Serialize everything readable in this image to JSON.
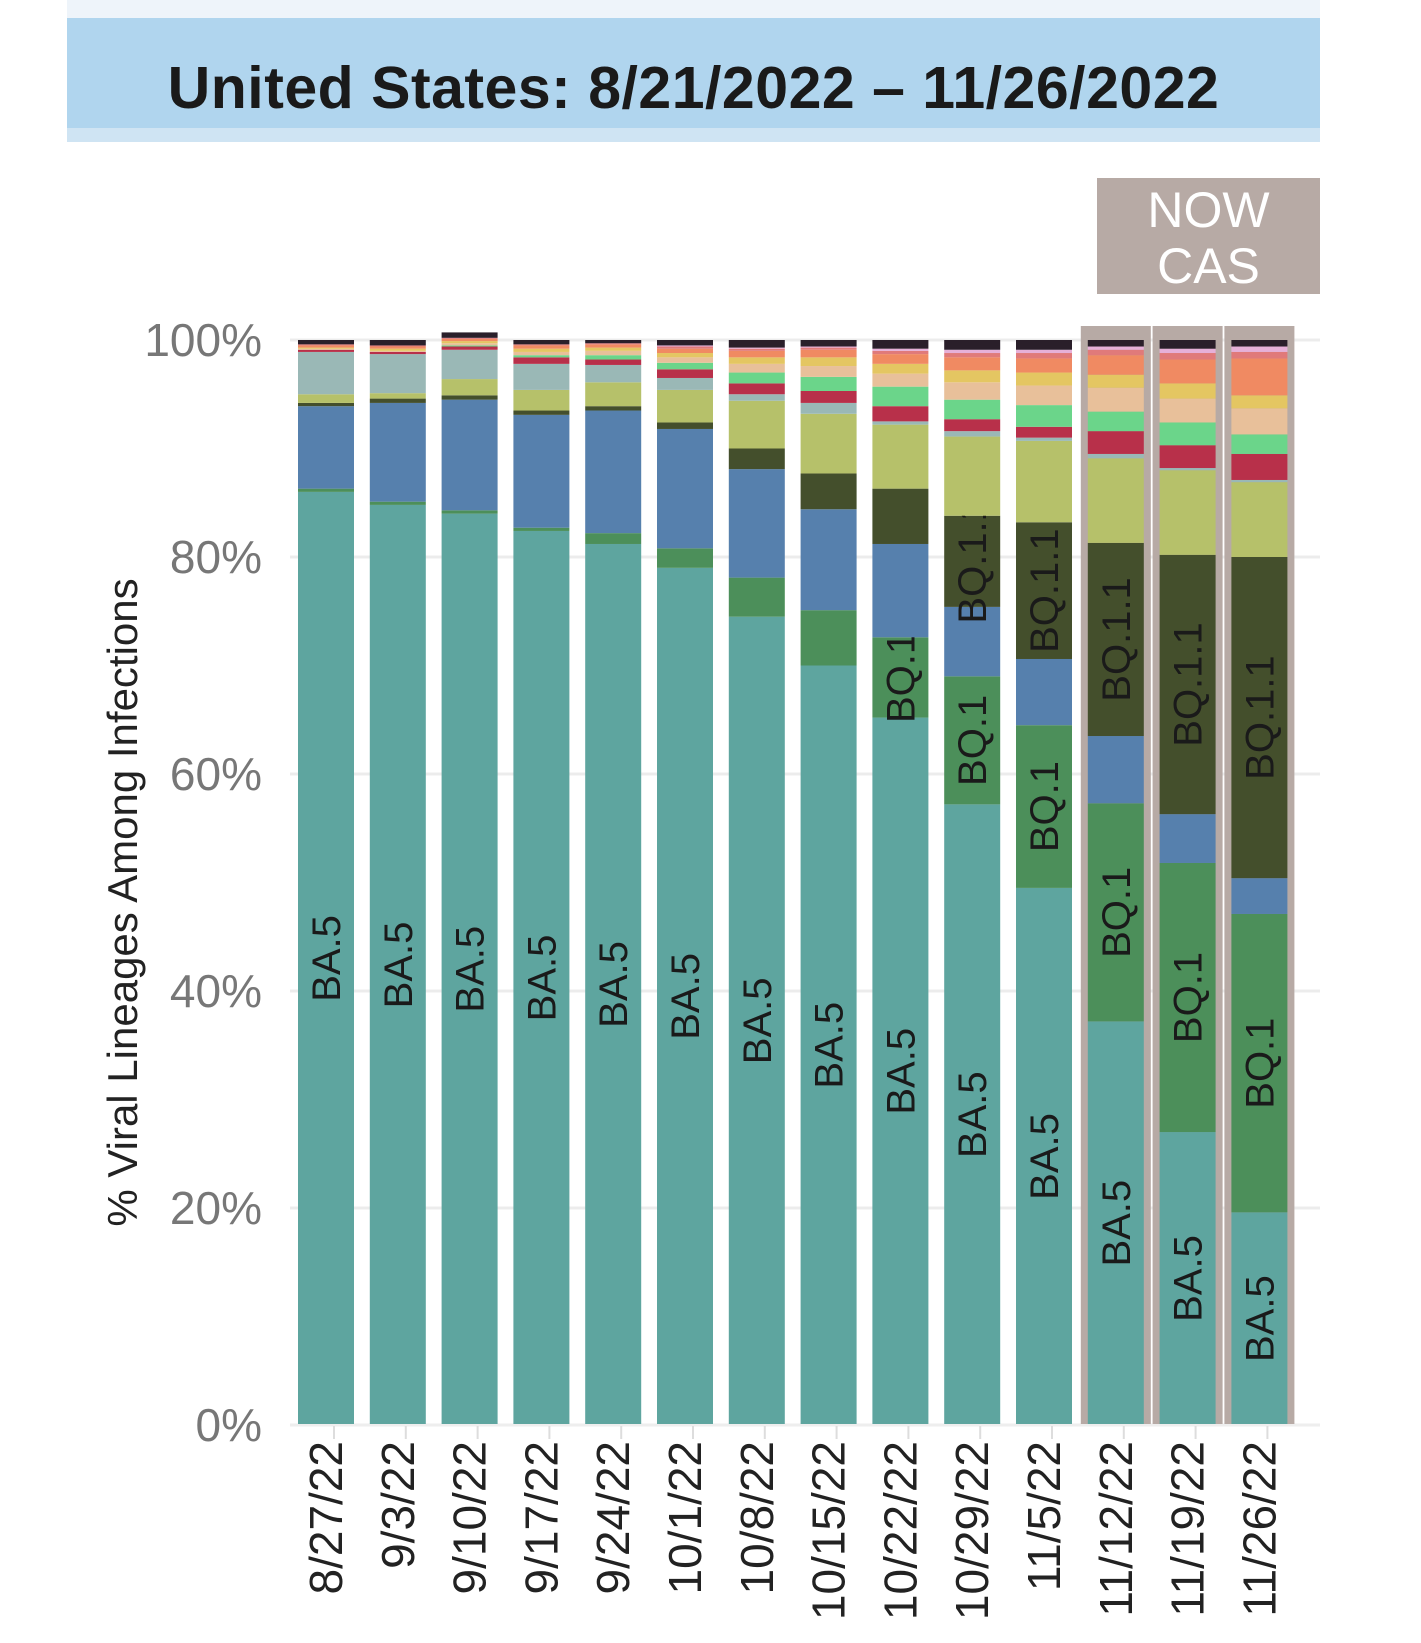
{
  "title": "United States: 8/21/2022 – 11/26/2022",
  "nowcast_label": [
    "NOW",
    "CAS"
  ],
  "colors": {
    "banner": "#b0d5ee",
    "nowcast": "#b7aaa5",
    "BA.5": "#5ea59f",
    "BQ.1": "#4c8f5a",
    "BA.4.6": "#5680ad",
    "BQ.1.1": "#444f2c",
    "BF.7": "#b6c16a",
    "other": "#96c4bb"
  },
  "chart_data": {
    "type": "bar",
    "stacked": true,
    "ylabel": "% Viral Lineages Among Infections",
    "ylim": [
      0,
      100
    ],
    "yticks": [
      "0%",
      "20%",
      "40%",
      "60%",
      "80%",
      "100%"
    ],
    "grid": true,
    "categories": [
      "8/27/22",
      "9/3/22",
      "9/10/22",
      "9/17/22",
      "9/24/22",
      "10/1/22",
      "10/8/22",
      "10/15/22",
      "10/22/22",
      "10/29/22",
      "11/5/22",
      "11/12/22",
      "11/19/22",
      "11/26/22"
    ],
    "nowcast_categories": [
      "11/12/22",
      "11/19/22",
      "11/26/22"
    ],
    "series": [
      {
        "name": "BA.5",
        "color": "#5ea59f",
        "label": "BA.5",
        "values": [
          86.0,
          84.8,
          84.0,
          82.4,
          81.2,
          79.0,
          74.5,
          70.0,
          65.2,
          57.2,
          49.5,
          37.2,
          27.0,
          19.6
        ]
      },
      {
        "color": "#4c8f5a",
        "label": "BQ.1",
        "values": [
          0.3,
          0.3,
          0.3,
          0.3,
          1.0,
          1.8,
          3.6,
          5.1,
          7.4,
          11.8,
          15.0,
          20.1,
          24.8,
          27.5
        ]
      },
      {
        "color": "#5680ad",
        "values": [
          7.6,
          9.1,
          10.2,
          10.4,
          11.3,
          11.0,
          10.0,
          9.3,
          8.6,
          6.4,
          6.1,
          6.2,
          4.5,
          3.3
        ]
      },
      {
        "color": "#444f2c",
        "label": "BQ.1.1",
        "values": [
          0.3,
          0.4,
          0.4,
          0.4,
          0.4,
          0.6,
          1.9,
          3.3,
          5.1,
          8.4,
          12.6,
          17.8,
          23.9,
          29.6
        ]
      },
      {
        "color": "#b6c16a",
        "values": [
          0.8,
          0.5,
          1.5,
          1.9,
          2.2,
          3.0,
          4.4,
          5.5,
          5.9,
          7.3,
          7.5,
          7.8,
          7.8,
          6.9
        ]
      },
      {
        "color": "#9ab8b6",
        "values": [
          3.9,
          3.6,
          2.7,
          2.4,
          1.6,
          1.1,
          0.6,
          1.0,
          0.3,
          0.5,
          0.3,
          0.4,
          0.2,
          0.2
        ]
      },
      {
        "color": "#b8304a",
        "values": [
          0.2,
          0.2,
          0.3,
          0.6,
          0.5,
          0.8,
          1.0,
          1.1,
          1.4,
          1.1,
          1.0,
          2.1,
          2.1,
          2.4
        ]
      },
      {
        "color": "#6bd58a",
        "values": [
          0.0,
          0.0,
          0.1,
          0.2,
          0.4,
          0.6,
          1.0,
          1.3,
          1.8,
          1.8,
          2.0,
          1.8,
          2.1,
          1.8
        ]
      },
      {
        "color": "#e8c09a",
        "values": [
          0.1,
          0.1,
          0.2,
          0.3,
          0.4,
          0.5,
          0.8,
          1.0,
          1.2,
          1.6,
          1.8,
          2.2,
          2.2,
          2.4
        ]
      },
      {
        "color": "#e4c662",
        "values": [
          0.1,
          0.2,
          0.2,
          0.3,
          0.3,
          0.4,
          0.6,
          0.8,
          0.9,
          1.1,
          1.2,
          1.2,
          1.4,
          1.2
        ]
      },
      {
        "color": "#f08a62",
        "values": [
          0.2,
          0.2,
          0.2,
          0.3,
          0.3,
          0.4,
          0.6,
          0.7,
          0.9,
          1.2,
          1.3,
          1.8,
          2.2,
          3.4
        ]
      },
      {
        "color": "#e07a7a",
        "values": [
          0.1,
          0.1,
          0.1,
          0.1,
          0.1,
          0.2,
          0.2,
          0.2,
          0.3,
          0.4,
          0.5,
          0.5,
          0.6,
          0.6
        ]
      },
      {
        "color": "#e6b0d8",
        "values": [
          0.0,
          0.0,
          0.0,
          0.0,
          0.0,
          0.1,
          0.1,
          0.1,
          0.2,
          0.3,
          0.3,
          0.3,
          0.4,
          0.5
        ]
      },
      {
        "color": "#2a1f2a",
        "values": [
          0.4,
          0.5,
          0.5,
          0.4,
          0.3,
          0.5,
          0.7,
          0.6,
          0.8,
          0.9,
          0.9,
          0.6,
          0.8,
          0.6
        ]
      }
    ]
  }
}
